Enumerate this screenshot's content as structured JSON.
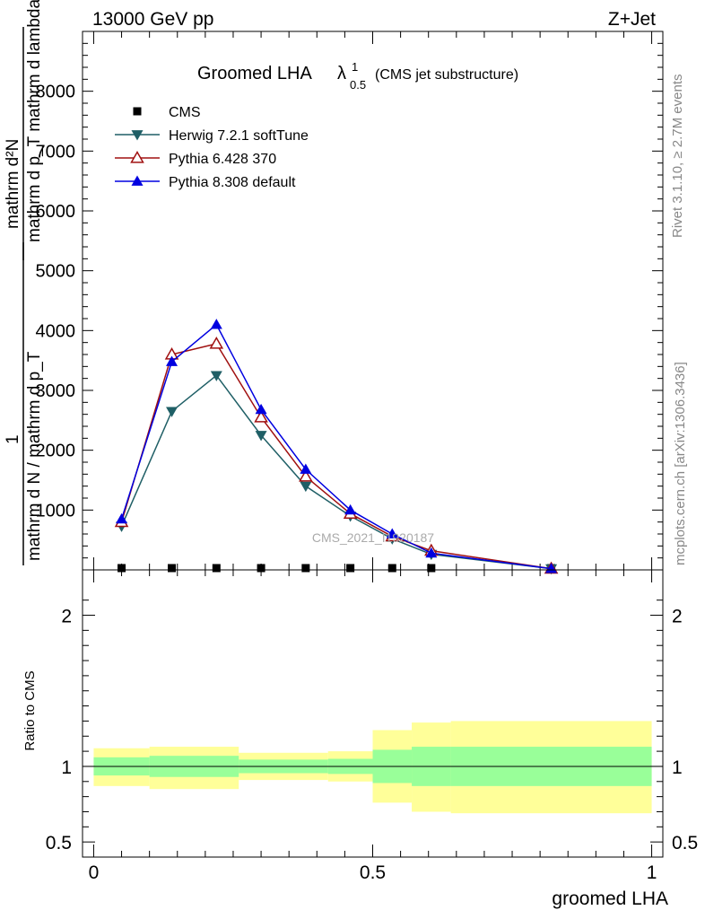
{
  "header": {
    "left": "13000 GeV pp",
    "right": "Z+Jet"
  },
  "side_labels": {
    "rivet": "Rivet 3.1.10, ≥ 2.7M events",
    "mcplots": "mcplots.cern.ch [arXiv:1306.3436]"
  },
  "watermark": "CMS_2021_I1920187",
  "main_title": {
    "main": "Groomed LHA",
    "lambda": "λ",
    "sup": "1",
    "sub": "0.5",
    "note": "(CMS jet substructure)"
  },
  "ylabel_main": {
    "top_num": "mathrm d²N",
    "top_den": "mathrm d p_T mathrm d lambda",
    "one": "1",
    "bottom": "mathrm d N / mathrm d p_T"
  },
  "ylabel_ratio": "Ratio to CMS",
  "xlabel": "groomed LHA",
  "colors": {
    "cms": "#000000",
    "herwig": "#1f5f66",
    "pythia6": "#a01010",
    "pythia8": "#0000e0",
    "band_inner": "#99ff99",
    "band_outer": "#ffff99"
  },
  "chart_data": [
    {
      "type": "line",
      "panel": "main",
      "xlim": [
        -0.02,
        1.02
      ],
      "ylim": [
        0,
        9000
      ],
      "y_ticks": [
        {
          "value": 1000,
          "label": "1000"
        },
        {
          "value": 2000,
          "label": "2000"
        },
        {
          "value": 3000,
          "label": "3000"
        },
        {
          "value": 4000,
          "label": "4000"
        },
        {
          "value": 5000,
          "label": "5000"
        },
        {
          "value": 6000,
          "label": "6000"
        },
        {
          "value": 7000,
          "label": "7000"
        },
        {
          "value": 8000,
          "label": "8000"
        }
      ],
      "legend_placement": "top-left",
      "series": [
        {
          "name": "CMS",
          "key": "cms",
          "marker": "square",
          "x": [
            0.05,
            0.14,
            0.22,
            0.3,
            0.38,
            0.46,
            0.535,
            0.605,
            0.82
          ],
          "y": [
            0,
            0,
            0,
            0,
            0,
            0,
            0,
            0,
            0
          ]
        },
        {
          "name": "Herwig 7.2.1 softTune",
          "key": "herwig",
          "marker": "triangle-down",
          "x": [
            0.05,
            0.14,
            0.22,
            0.3,
            0.38,
            0.46,
            0.535,
            0.605,
            0.82
          ],
          "y": [
            730,
            2650,
            3250,
            2250,
            1400,
            900,
            520,
            260,
            20
          ]
        },
        {
          "name": "Pythia 6.428 370",
          "key": "pythia6",
          "marker": "triangle-up-open",
          "x": [
            0.05,
            0.14,
            0.22,
            0.3,
            0.38,
            0.46,
            0.535,
            0.605,
            0.82
          ],
          "y": [
            800,
            3600,
            3780,
            2550,
            1560,
            940,
            560,
            320,
            20
          ]
        },
        {
          "name": "Pythia 8.308 default",
          "key": "pythia8",
          "marker": "triangle-up",
          "x": [
            0.05,
            0.14,
            0.22,
            0.3,
            0.38,
            0.46,
            0.535,
            0.605,
            0.82
          ],
          "y": [
            850,
            3480,
            4100,
            2680,
            1680,
            1000,
            600,
            280,
            20
          ]
        }
      ]
    },
    {
      "type": "area",
      "panel": "ratio",
      "xlim": [
        -0.02,
        1.02
      ],
      "ylim": [
        0.4,
        2.3
      ],
      "y_ticks": [
        {
          "value": 0.5,
          "label": "0.5"
        },
        {
          "value": 1,
          "label": "1"
        },
        {
          "value": 2,
          "label": "2"
        }
      ],
      "x_ticks": [
        {
          "value": 0,
          "label": "0"
        },
        {
          "value": 0.5,
          "label": "0.5"
        },
        {
          "value": 1,
          "label": "1"
        }
      ],
      "reference_line": 1,
      "bins": [
        {
          "lo": 0.0,
          "hi": 0.1,
          "inner": [
            0.94,
            1.06
          ],
          "outer": [
            0.87,
            1.12
          ]
        },
        {
          "lo": 0.1,
          "hi": 0.26,
          "inner": [
            0.93,
            1.07
          ],
          "outer": [
            0.85,
            1.13
          ]
        },
        {
          "lo": 0.26,
          "hi": 0.42,
          "inner": [
            0.955,
            1.045
          ],
          "outer": [
            0.91,
            1.09
          ]
        },
        {
          "lo": 0.42,
          "hi": 0.5,
          "inner": [
            0.95,
            1.05
          ],
          "outer": [
            0.9,
            1.1
          ]
        },
        {
          "lo": 0.5,
          "hi": 0.57,
          "inner": [
            0.89,
            1.11
          ],
          "outer": [
            0.76,
            1.24
          ]
        },
        {
          "lo": 0.57,
          "hi": 0.64,
          "inner": [
            0.87,
            1.13
          ],
          "outer": [
            0.7,
            1.29
          ]
        },
        {
          "lo": 0.64,
          "hi": 1.0,
          "inner": [
            0.87,
            1.13
          ],
          "outer": [
            0.69,
            1.3
          ]
        }
      ]
    }
  ]
}
